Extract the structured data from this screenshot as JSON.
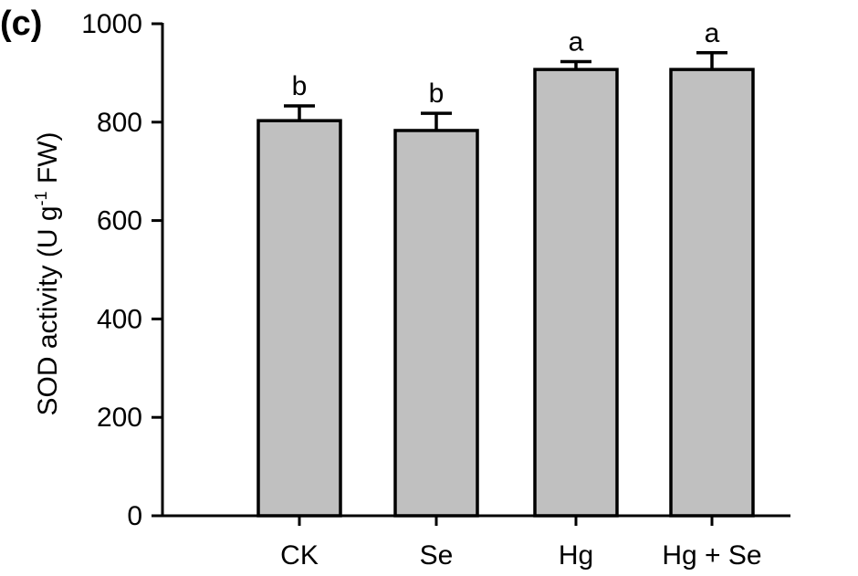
{
  "panel_label": "(c)",
  "chart_data": {
    "type": "bar",
    "categories": [
      "CK",
      "Se",
      "Hg",
      "Hg + Se"
    ],
    "values": [
      803,
      783,
      907,
      907
    ],
    "errors": [
      30,
      35,
      16,
      34
    ],
    "significance": [
      "b",
      "b",
      "a",
      "a"
    ],
    "title": "",
    "xlabel": "",
    "ylabel_main": "SOD activity (U g",
    "ylabel_sup": "-1",
    "ylabel_tail": " FW)",
    "ylim": [
      0,
      1000
    ],
    "yticks": [
      "0",
      "200",
      "400",
      "600",
      "800",
      "1000"
    ],
    "bar_color": "#c0c0c0",
    "grid": false
  }
}
